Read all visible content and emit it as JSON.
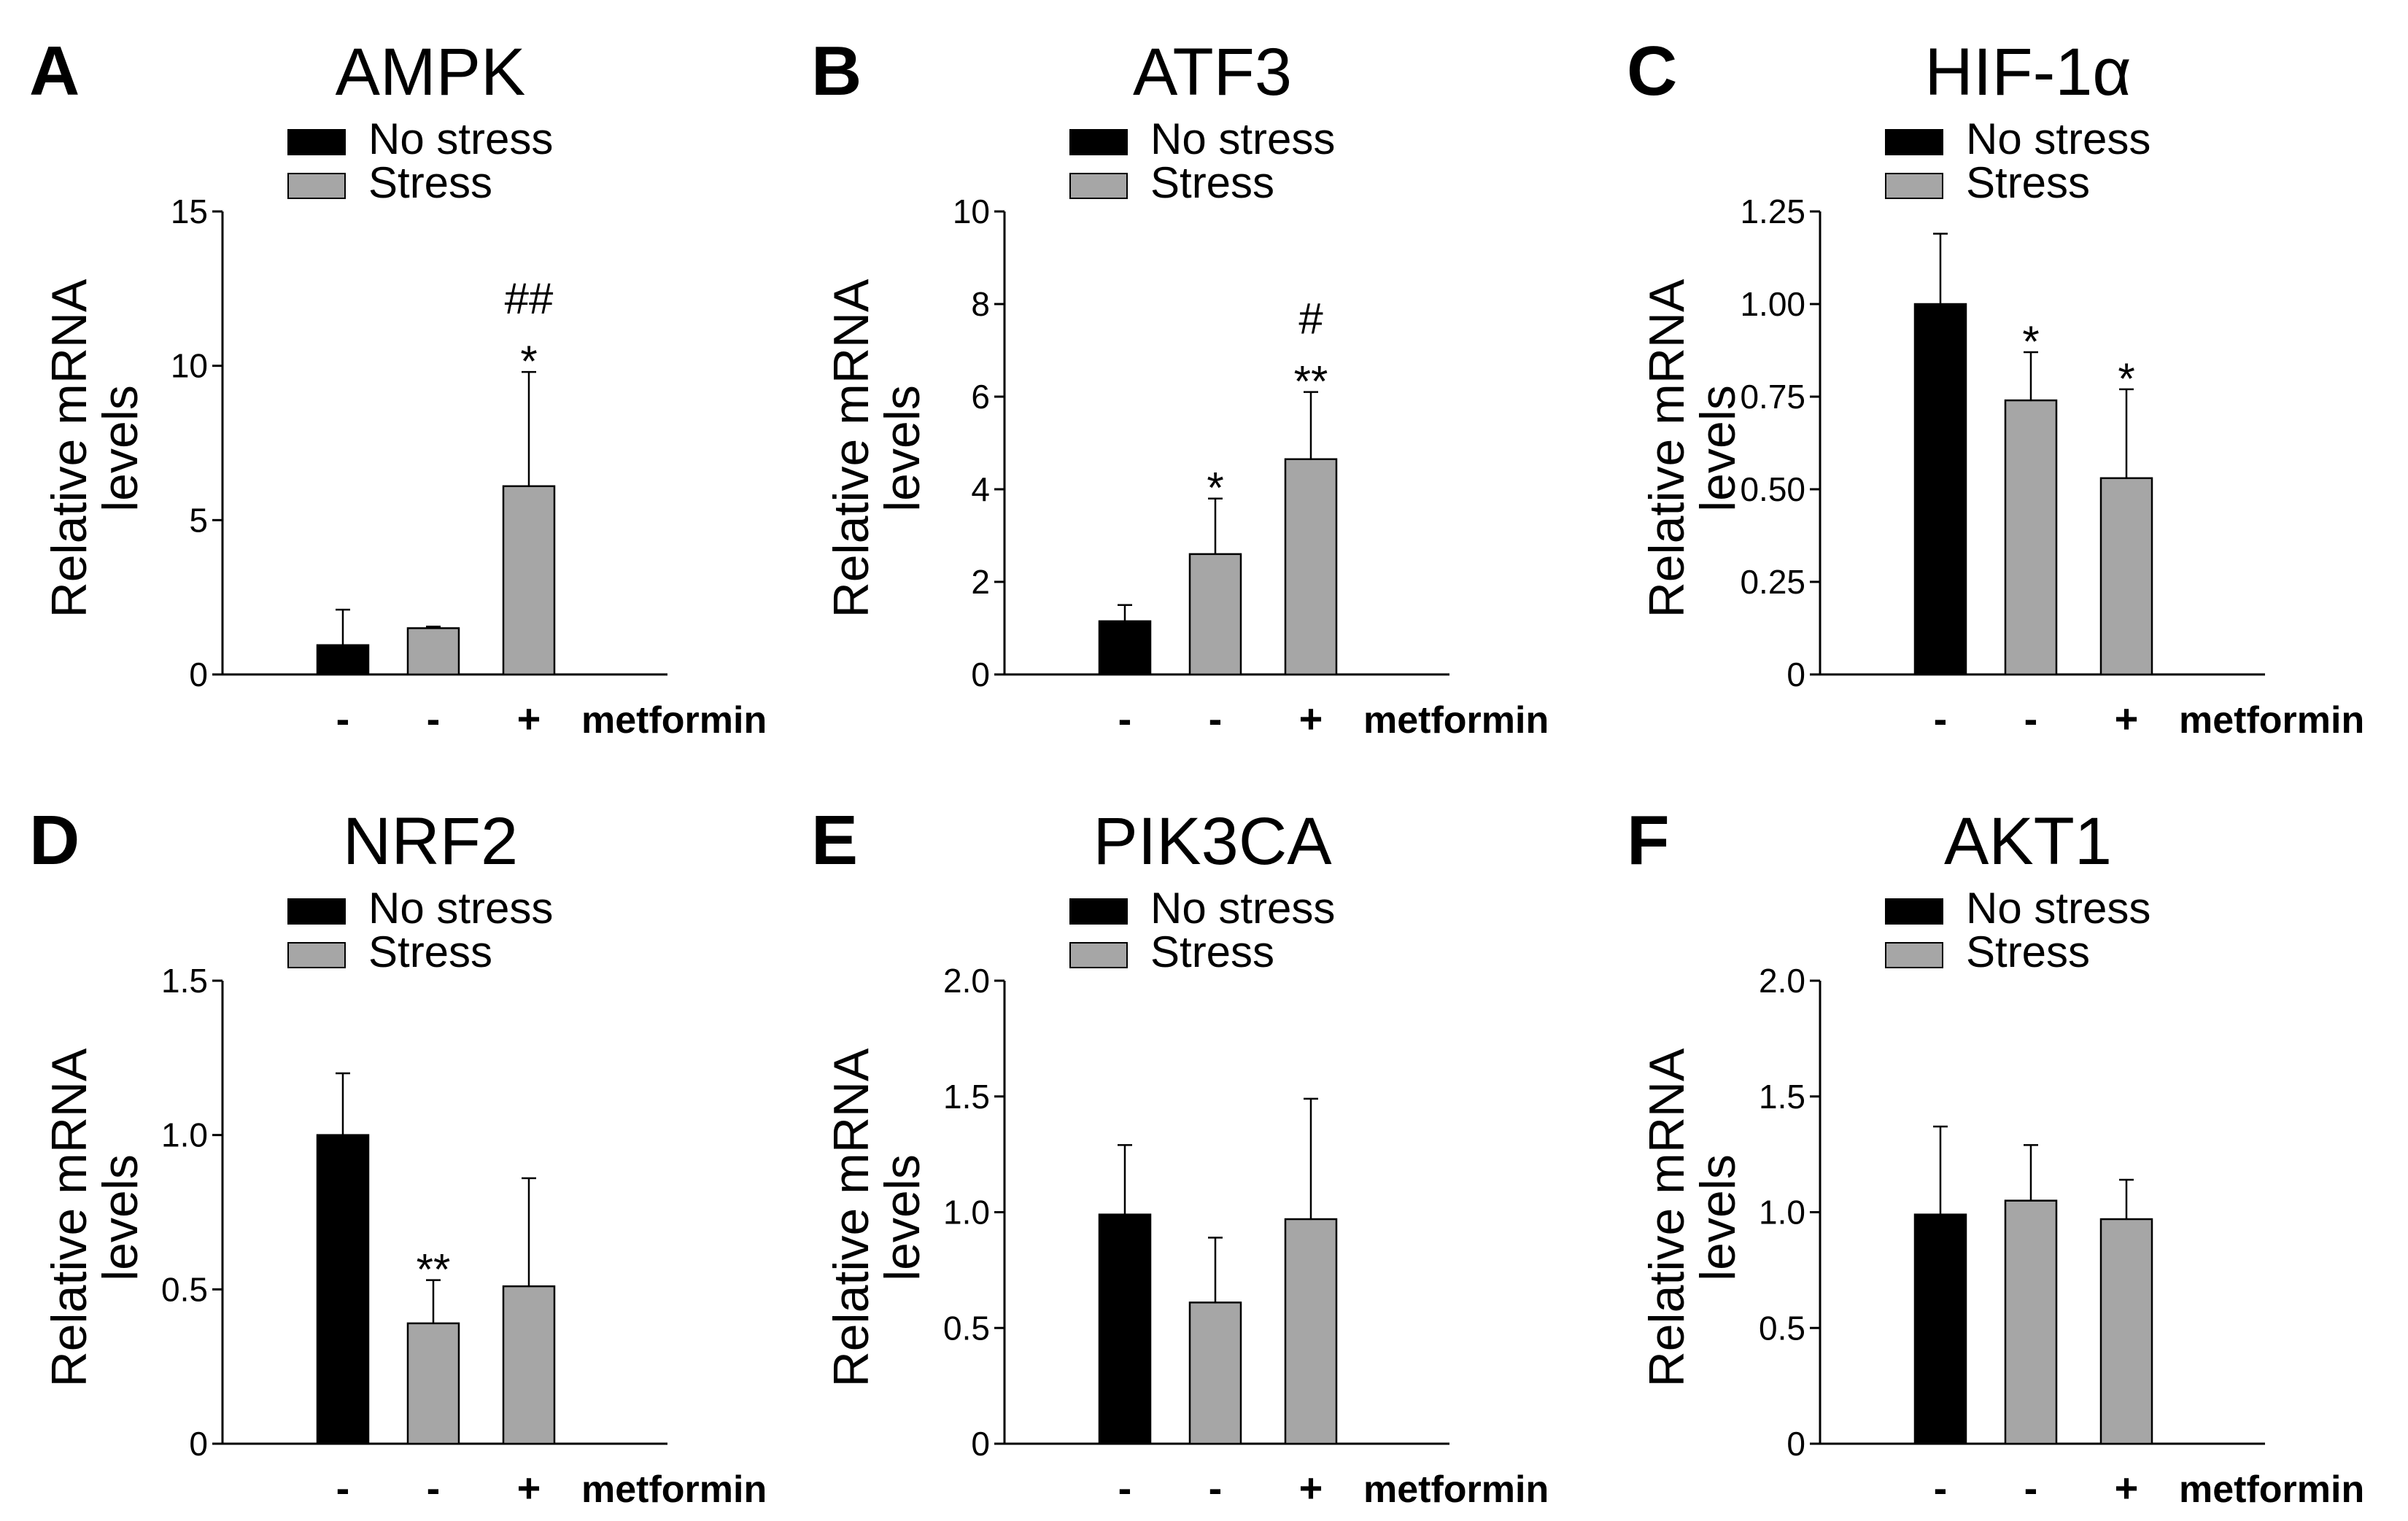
{
  "colors": {
    "no_stress": "#000000",
    "stress": "#a6a6a6",
    "axis": "#000000"
  },
  "chart_data": [
    {
      "type": "bar",
      "panel": "A",
      "title": "AMPK",
      "ylabel": [
        "Relative mRNA",
        "levels"
      ],
      "ylim": [
        0,
        15
      ],
      "yticks": [
        "0",
        "5",
        "10",
        "15"
      ],
      "ytick_values": [
        0,
        5,
        10,
        15
      ],
      "legend": [
        "No stress",
        "Stress"
      ],
      "categories": [
        "-",
        "-",
        "+"
      ],
      "xlabel": "metformin",
      "series": [
        "No stress",
        "Stress",
        "Stress"
      ],
      "values": [
        0.95,
        1.5,
        6.1
      ],
      "errors": [
        1.15,
        0.05,
        3.7
      ],
      "annotations": [
        [],
        [],
        [
          "##",
          "*"
        ]
      ]
    },
    {
      "type": "bar",
      "panel": "B",
      "title": "ATF3",
      "ylabel": [
        "Relative mRNA",
        "levels"
      ],
      "ylim": [
        0,
        10
      ],
      "yticks": [
        "0",
        "2",
        "4",
        "6",
        "8",
        "10"
      ],
      "ytick_values": [
        0,
        2,
        4,
        6,
        8,
        10
      ],
      "legend": [
        "No stress",
        "Stress"
      ],
      "categories": [
        "-",
        "-",
        "+"
      ],
      "xlabel": "metformin",
      "series": [
        "No stress",
        "Stress",
        "Stress"
      ],
      "values": [
        1.15,
        2.6,
        4.65
      ],
      "errors": [
        0.35,
        1.2,
        1.45
      ],
      "annotations": [
        [],
        [
          "*"
        ],
        [
          "#",
          "**"
        ]
      ]
    },
    {
      "type": "bar",
      "panel": "C",
      "title": "HIF-1α",
      "ylabel": [
        "Relative mRNA",
        "levels"
      ],
      "ylim": [
        0,
        1.25
      ],
      "yticks": [
        "0",
        "0.25",
        "0.50",
        "0.75",
        "1.00",
        "1.25"
      ],
      "ytick_values": [
        0,
        0.25,
        0.5,
        0.75,
        1.0,
        1.25
      ],
      "legend": [
        "No stress",
        "Stress"
      ],
      "categories": [
        "-",
        "-",
        "+"
      ],
      "xlabel": "metformin",
      "series": [
        "No stress",
        "Stress",
        "Stress"
      ],
      "values": [
        1.0,
        0.74,
        0.53
      ],
      "errors": [
        0.19,
        0.13,
        0.24
      ],
      "annotations": [
        [],
        [
          "*"
        ],
        [
          "*"
        ]
      ]
    },
    {
      "type": "bar",
      "panel": "D",
      "title": "NRF2",
      "ylabel": [
        "Relative mRNA",
        "levels"
      ],
      "ylim": [
        0,
        1.5
      ],
      "yticks": [
        "0",
        "0.5",
        "1.0",
        "1.5"
      ],
      "ytick_values": [
        0,
        0.5,
        1.0,
        1.5
      ],
      "legend": [
        "No stress",
        "Stress"
      ],
      "categories": [
        "-",
        "-",
        "+"
      ],
      "xlabel": "metformin",
      "series": [
        "No stress",
        "Stress",
        "Stress"
      ],
      "values": [
        1.0,
        0.39,
        0.51
      ],
      "errors": [
        0.2,
        0.14,
        0.35
      ],
      "annotations": [
        [],
        [
          "**"
        ],
        []
      ]
    },
    {
      "type": "bar",
      "panel": "E",
      "title": "PIK3CA",
      "ylabel": [
        "Relative mRNA",
        "levels"
      ],
      "ylim": [
        0,
        2.0
      ],
      "yticks": [
        "0",
        "0.5",
        "1.0",
        "1.5",
        "2.0"
      ],
      "ytick_values": [
        0,
        0.5,
        1.0,
        1.5,
        2.0
      ],
      "legend": [
        "No stress",
        "Stress"
      ],
      "categories": [
        "-",
        "-",
        "+"
      ],
      "xlabel": "metformin",
      "series": [
        "No stress",
        "Stress",
        "Stress"
      ],
      "values": [
        0.99,
        0.61,
        0.97
      ],
      "errors": [
        0.3,
        0.28,
        0.52
      ],
      "annotations": [
        [],
        [],
        []
      ]
    },
    {
      "type": "bar",
      "panel": "F",
      "title": "AKT1",
      "ylabel": [
        "Relative mRNA",
        "levels"
      ],
      "ylim": [
        0,
        2.0
      ],
      "yticks": [
        "0",
        "0.5",
        "1.0",
        "1.5",
        "2.0"
      ],
      "ytick_values": [
        0,
        0.5,
        1.0,
        1.5,
        2.0
      ],
      "legend": [
        "No stress",
        "Stress"
      ],
      "categories": [
        "-",
        "-",
        "+"
      ],
      "xlabel": "metformin",
      "series": [
        "No stress",
        "Stress",
        "Stress"
      ],
      "values": [
        0.99,
        1.05,
        0.97
      ],
      "errors": [
        0.38,
        0.24,
        0.17
      ],
      "annotations": [
        [],
        [],
        []
      ]
    }
  ]
}
